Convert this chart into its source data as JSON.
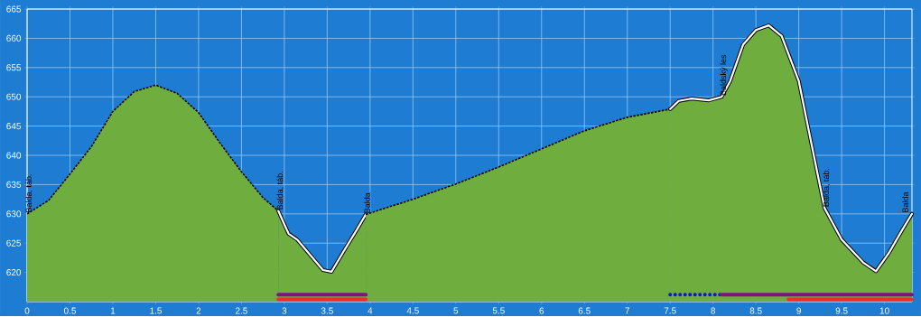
{
  "chart_data": {
    "type": "area",
    "series": [
      {
        "color": "#6fae3e",
        "line_style": "dashed",
        "x": [
          0,
          0.25,
          0.5,
          0.75,
          1.0,
          1.25,
          1.5,
          1.75,
          2.0,
          2.25,
          2.5,
          2.75,
          2.93
        ],
        "values": [
          630,
          632.3,
          636.8,
          641.5,
          647.5,
          650.9,
          652.0,
          650.6,
          647.3,
          642.1,
          637.2,
          632.8,
          630.5
        ]
      },
      {
        "color": "#6fae3e",
        "line_style": "solid",
        "x": [
          2.93,
          3.0,
          3.05,
          3.15,
          3.3,
          3.45,
          3.55,
          3.7,
          3.85,
          3.95
        ],
        "values": [
          630.5,
          628.2,
          626.6,
          625.6,
          623.0,
          620.4,
          620.1,
          623.8,
          627.4,
          629.9
        ]
      },
      {
        "color": "#6fae3e",
        "line_style": "dashed",
        "x": [
          3.95,
          4.5,
          5.0,
          5.5,
          6.0,
          6.5,
          7.0,
          7.5
        ],
        "values": [
          629.9,
          632.5,
          635.1,
          638.0,
          641.1,
          644.2,
          646.5,
          647.9
        ]
      },
      {
        "color": "#6fae3e",
        "line_style": "solid",
        "x": [
          7.5,
          7.6,
          7.75,
          7.95,
          8.1,
          8.2,
          8.35,
          8.5,
          8.65,
          8.8,
          9.0,
          9.15,
          9.3,
          9.5,
          9.75,
          9.9,
          10.05,
          10.2,
          10.32
        ],
        "values": [
          647.9,
          649.3,
          649.7,
          649.4,
          650.0,
          652.7,
          658.9,
          661.4,
          662.2,
          660.4,
          652.7,
          641.8,
          631.0,
          625.6,
          621.7,
          620.2,
          623.3,
          627.1,
          630.0
        ]
      },
      {
        "type": "line",
        "color": "#7b1680",
        "line_style": "solid",
        "x": [
          2.93,
          3.95
        ],
        "values": [
          616.2,
          616.2
        ]
      },
      {
        "type": "line",
        "color": "#e8302a",
        "line_style": "solid",
        "x": [
          2.93,
          3.95
        ],
        "values": [
          615.4,
          615.4
        ]
      },
      {
        "type": "line",
        "color": "#1414d2",
        "line_style": "dotted",
        "x": [
          7.5,
          8.1
        ],
        "values": [
          616.2,
          616.2
        ]
      },
      {
        "type": "line",
        "color": "#7b1680",
        "line_style": "solid",
        "x": [
          8.1,
          10.32
        ],
        "values": [
          616.2,
          616.2
        ]
      },
      {
        "type": "line",
        "color": "#e8302a",
        "line_style": "solid",
        "x": [
          8.88,
          10.32
        ],
        "values": [
          615.4,
          615.4
        ]
      }
    ],
    "xlim": [
      0,
      10.32
    ],
    "ylim": [
      615,
      665
    ],
    "xticks": [
      0,
      0.5,
      1,
      1.5,
      2,
      2.5,
      3,
      3.5,
      4,
      4.5,
      5,
      5.5,
      6,
      6.5,
      7,
      7.5,
      8,
      8.5,
      9,
      9.5,
      10
    ],
    "yticks": [
      620,
      625,
      630,
      635,
      640,
      645,
      650,
      655,
      660,
      665
    ],
    "grid": true,
    "annotations": [
      {
        "text": "Balda, táb.",
        "x": 0,
        "y": 630
      },
      {
        "text": "Balda, táb.",
        "x": 2.93,
        "y": 630.5
      },
      {
        "text": "Balda",
        "x": 3.95,
        "y": 629.9
      },
      {
        "text": "Baldský les",
        "x": 8.1,
        "y": 650.0
      },
      {
        "text": "Balda, táb.",
        "x": 9.3,
        "y": 631.0
      },
      {
        "text": "Balda",
        "x": 10.32,
        "y": 630.0
      }
    ]
  }
}
